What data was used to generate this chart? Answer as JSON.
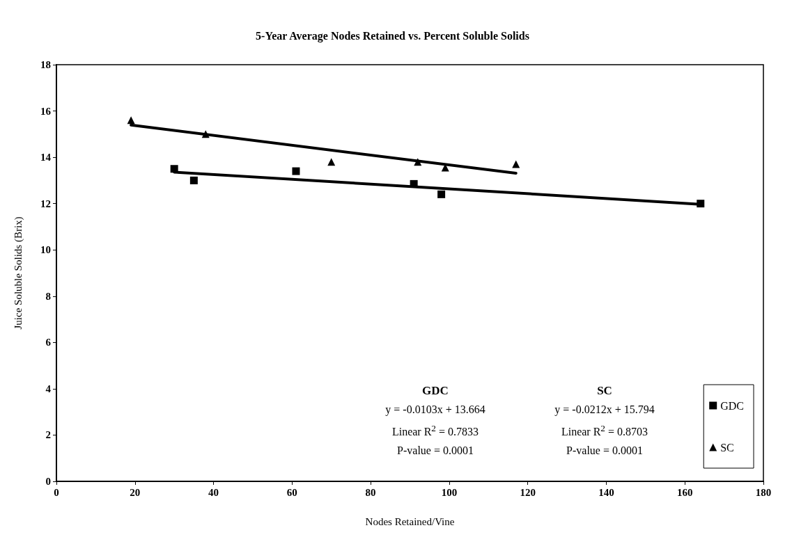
{
  "chart_data": {
    "type": "scatter",
    "title": "5-Year Average Nodes Retained vs. Percent Soluble Solids",
    "xlabel": "Nodes Retained/Vine",
    "ylabel": "Juice Soluble Solids (Brix)",
    "xlim": [
      0,
      180
    ],
    "xticks": [
      0,
      20,
      40,
      60,
      80,
      100,
      120,
      140,
      160,
      180
    ],
    "ylim": [
      0,
      18
    ],
    "yticks": [
      0,
      2,
      4,
      6,
      8,
      10,
      12,
      14,
      16,
      18
    ],
    "grid": false,
    "legend": "bottom right",
    "series": [
      {
        "name": "GDC",
        "marker": "square",
        "color": "#000000",
        "x": [
          30,
          35,
          61,
          91,
          98,
          164
        ],
        "values": [
          13.5,
          13.0,
          13.4,
          12.85,
          12.4,
          12.0
        ]
      },
      {
        "name": "SC",
        "marker": "triangle",
        "color": "#000000",
        "x": [
          19,
          38,
          70,
          92,
          99,
          117
        ],
        "values": [
          15.6,
          15.0,
          13.8,
          13.8,
          13.55,
          13.7
        ]
      },
      {
        "type": "line",
        "marker": "none",
        "line_style": "solid",
        "color": "#000000",
        "x": [
          30,
          164
        ],
        "values": [
          13.36,
          11.97
        ]
      },
      {
        "type": "line",
        "marker": "none",
        "line_style": "solid",
        "color": "#000000",
        "x": [
          19,
          117
        ],
        "values": [
          15.39,
          13.31
        ]
      }
    ],
    "annotations": [
      "GDC\ny = -0.0103x + 13.664\nLinear R$^{2}$ = 0.7833\nP-value = 0.0001",
      "SC\ny = -0.0212x + 15.794\nLinear R$^{2}$ = 0.8703\nP-value = 0.0001"
    ]
  }
}
